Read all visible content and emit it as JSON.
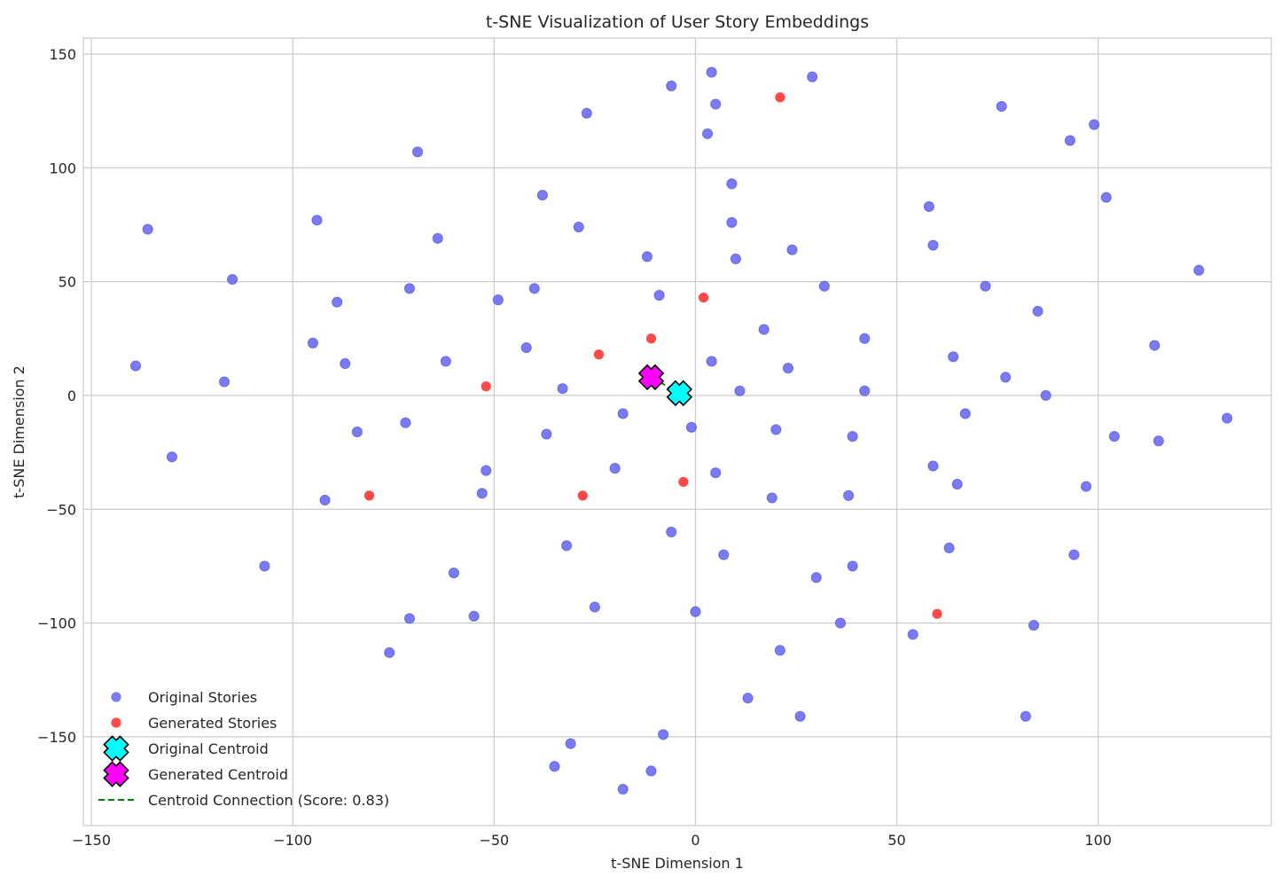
{
  "chart_data": {
    "type": "scatter",
    "title": "t-SNE Visualization of User Story Embeddings",
    "xlabel": "t-SNE Dimension 1",
    "ylabel": "t-SNE Dimension 2",
    "xlim": [
      -152,
      143
    ],
    "ylim": [
      -189,
      157
    ],
    "xticks": [
      -150,
      -100,
      -50,
      0,
      50,
      100
    ],
    "yticks": [
      -150,
      -100,
      -50,
      0,
      50,
      100,
      150
    ],
    "xtick_labels": [
      "−150",
      "−100",
      "−50",
      "0",
      "50",
      "100"
    ],
    "ytick_labels": [
      "−150",
      "−100",
      "−50",
      "0",
      "50",
      "100",
      "150"
    ],
    "grid": true,
    "legend_position": "bottom-left",
    "series": [
      {
        "name": "Original Stories",
        "color": "#6b6bf2",
        "marker": "circle",
        "points": [
          [
            -139,
            13
          ],
          [
            -136,
            73
          ],
          [
            -130,
            -27
          ],
          [
            -117,
            6
          ],
          [
            -115,
            51
          ],
          [
            -107,
            -75
          ],
          [
            -95,
            23
          ],
          [
            -94,
            77
          ],
          [
            -92,
            -46
          ],
          [
            -89,
            41
          ],
          [
            -87,
            14
          ],
          [
            -84,
            -16
          ],
          [
            -76,
            -113
          ],
          [
            -72,
            -12
          ],
          [
            -71,
            -98
          ],
          [
            -71,
            47
          ],
          [
            -69,
            107
          ],
          [
            -64,
            69
          ],
          [
            -62,
            15
          ],
          [
            -60,
            -78
          ],
          [
            -55,
            -97
          ],
          [
            -53,
            -43
          ],
          [
            -52,
            -33
          ],
          [
            -49,
            42
          ],
          [
            -42,
            21
          ],
          [
            -40,
            47
          ],
          [
            -38,
            88
          ],
          [
            -37,
            -17
          ],
          [
            -35,
            -163
          ],
          [
            -33,
            3
          ],
          [
            -32,
            -66
          ],
          [
            -31,
            -153
          ],
          [
            -29,
            74
          ],
          [
            -27,
            124
          ],
          [
            -25,
            -93
          ],
          [
            -20,
            -32
          ],
          [
            -18,
            -8
          ],
          [
            -18,
            -173
          ],
          [
            -12,
            61
          ],
          [
            -11,
            -165
          ],
          [
            -9,
            44
          ],
          [
            -8,
            -149
          ],
          [
            -6,
            136
          ],
          [
            -6,
            -60
          ],
          [
            -1,
            -14
          ],
          [
            0,
            -95
          ],
          [
            3,
            115
          ],
          [
            4,
            142
          ],
          [
            4,
            15
          ],
          [
            5,
            128
          ],
          [
            5,
            -34
          ],
          [
            7,
            -70
          ],
          [
            9,
            93
          ],
          [
            9,
            76
          ],
          [
            10,
            60
          ],
          [
            11,
            2
          ],
          [
            13,
            -133
          ],
          [
            17,
            29
          ],
          [
            19,
            -45
          ],
          [
            20,
            -15
          ],
          [
            21,
            -112
          ],
          [
            23,
            12
          ],
          [
            24,
            64
          ],
          [
            26,
            -141
          ],
          [
            29,
            140
          ],
          [
            30,
            -80
          ],
          [
            32,
            48
          ],
          [
            36,
            -100
          ],
          [
            38,
            -44
          ],
          [
            39,
            -75
          ],
          [
            39,
            -18
          ],
          [
            42,
            25
          ],
          [
            42,
            2
          ],
          [
            54,
            -105
          ],
          [
            58,
            83
          ],
          [
            59,
            66
          ],
          [
            59,
            -31
          ],
          [
            63,
            -67
          ],
          [
            64,
            17
          ],
          [
            65,
            -39
          ],
          [
            67,
            -8
          ],
          [
            72,
            48
          ],
          [
            76,
            127
          ],
          [
            77,
            8
          ],
          [
            82,
            -141
          ],
          [
            84,
            -101
          ],
          [
            85,
            37
          ],
          [
            87,
            0
          ],
          [
            93,
            112
          ],
          [
            94,
            -70
          ],
          [
            97,
            -40
          ],
          [
            99,
            119
          ],
          [
            102,
            87
          ],
          [
            104,
            -18
          ],
          [
            114,
            22
          ],
          [
            115,
            -20
          ],
          [
            125,
            55
          ],
          [
            132,
            -10
          ]
        ]
      },
      {
        "name": "Generated Stories",
        "color": "#ff3a3a",
        "marker": "circle",
        "points": [
          [
            -81,
            -44
          ],
          [
            -52,
            4
          ],
          [
            -28,
            -44
          ],
          [
            -24,
            18
          ],
          [
            -11,
            25
          ],
          [
            -3,
            -38
          ],
          [
            2,
            43
          ],
          [
            21,
            131
          ],
          [
            60,
            -96
          ]
        ]
      },
      {
        "name": "Original Centroid",
        "color": "#00ffff",
        "marker": "x-filled",
        "points": [
          [
            -4,
            1
          ]
        ]
      },
      {
        "name": "Generated Centroid",
        "color": "#ff00ff",
        "marker": "x-filled",
        "points": [
          [
            -11,
            8
          ]
        ]
      },
      {
        "name": "Centroid Connection (Score: 0.83)",
        "color": "#008000",
        "marker": "dashed-line",
        "points": [
          [
            -11,
            8
          ],
          [
            -4,
            1
          ]
        ]
      }
    ]
  }
}
